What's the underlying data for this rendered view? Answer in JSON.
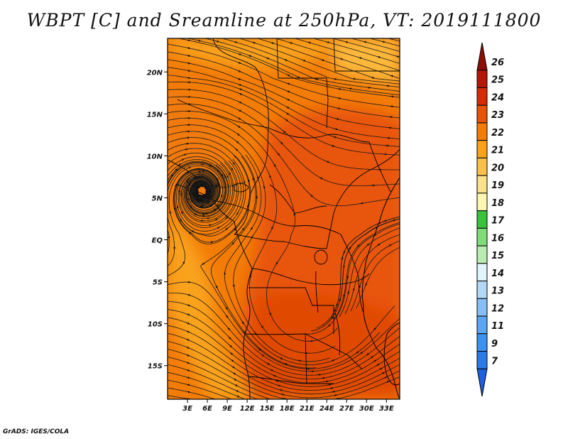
{
  "title": "WBPT [C] and Sreamline at 250hPa, VT: 2019111800",
  "credit": "GrADS: IGES/COLA",
  "map": {
    "lon_ticks": [
      "3E",
      "6E",
      "9E",
      "12E",
      "15E",
      "18E",
      "21E",
      "24E",
      "27E",
      "30E",
      "33E"
    ],
    "lat_ticks": [
      "20N",
      "15N",
      "10N",
      "5N",
      "EQ",
      "5S",
      "10S",
      "15S"
    ],
    "lon_range": [
      0,
      35
    ],
    "lat_range": [
      -19,
      24
    ]
  },
  "colorbar": {
    "labels": [
      "7",
      "9",
      "11",
      "12",
      "13",
      "14",
      "15",
      "16",
      "17",
      "18",
      "19",
      "20",
      "21",
      "22",
      "23",
      "24",
      "25",
      "26"
    ],
    "colors": [
      "#1e60e0",
      "#2b7ae8",
      "#3c92ef",
      "#5aa6f2",
      "#86bff5",
      "#b2d8f8",
      "#e1f4fb",
      "#b9ecb1",
      "#7fdd77",
      "#39c23a",
      "#fdf6b0",
      "#fde08a",
      "#fcc04a",
      "#f9a21a",
      "#f37c07",
      "#e85407",
      "#d42c04",
      "#b51605",
      "#8c0f06"
    ],
    "extend": "both"
  },
  "palette": {
    "wbpt_20": "#fcc04a",
    "wbpt_21": "#f9a21a",
    "wbpt_22": "#f37c07",
    "wbpt_23": "#e85407",
    "streamline": "#1a1a1a",
    "coast": "#000000"
  }
}
